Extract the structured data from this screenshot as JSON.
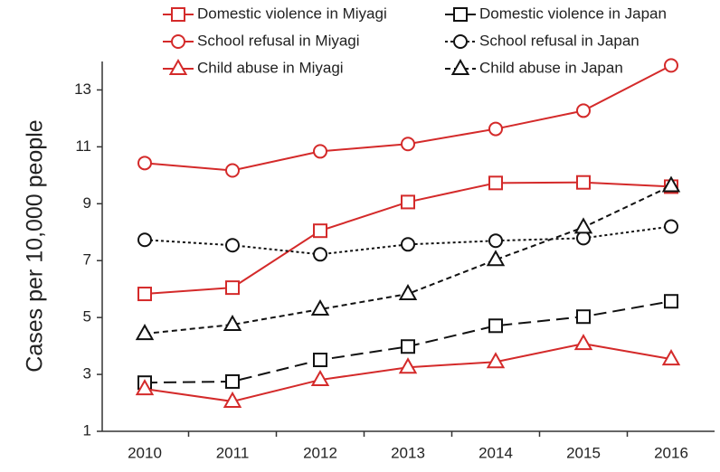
{
  "chart_data": {
    "type": "line",
    "y_label": "Cases per 10,000 people",
    "categories": [
      "2010",
      "2011",
      "2012",
      "2013",
      "2014",
      "2015",
      "2016"
    ],
    "ylim": [
      1,
      14
    ],
    "yticks": [
      1,
      3,
      5,
      7,
      9,
      11,
      13
    ],
    "series": [
      {
        "name": "Domestic violence in Miyagi",
        "color": "#d42a2a",
        "marker": "square",
        "dash": "solid",
        "values": [
          5.83,
          6.05,
          8.05,
          9.06,
          9.73,
          9.75,
          9.6
        ]
      },
      {
        "name": "Domestic violence in Japan",
        "color": "#111111",
        "marker": "square",
        "dash": "long",
        "values": [
          2.71,
          2.75,
          3.51,
          3.98,
          4.71,
          5.03,
          5.57
        ]
      },
      {
        "name": "School refusal in Miyagi",
        "color": "#d42a2a",
        "marker": "circle",
        "dash": "solid",
        "values": [
          10.43,
          10.17,
          10.84,
          11.1,
          11.63,
          12.27,
          13.86
        ]
      },
      {
        "name": "School refusal in Japan",
        "color": "#111111",
        "marker": "circle",
        "dash": "dotted",
        "values": [
          7.73,
          7.54,
          7.22,
          7.57,
          7.7,
          7.79,
          8.2
        ]
      },
      {
        "name": "Child abuse in Miyagi",
        "color": "#d42a2a",
        "marker": "triangle",
        "dash": "solid",
        "values": [
          2.49,
          2.05,
          2.81,
          3.25,
          3.44,
          4.08,
          3.54
        ]
      },
      {
        "name": "Child abuse in Japan",
        "color": "#111111",
        "marker": "triangle",
        "dash": "short",
        "values": [
          4.43,
          4.75,
          5.29,
          5.83,
          7.03,
          8.17,
          9.63
        ]
      }
    ]
  }
}
